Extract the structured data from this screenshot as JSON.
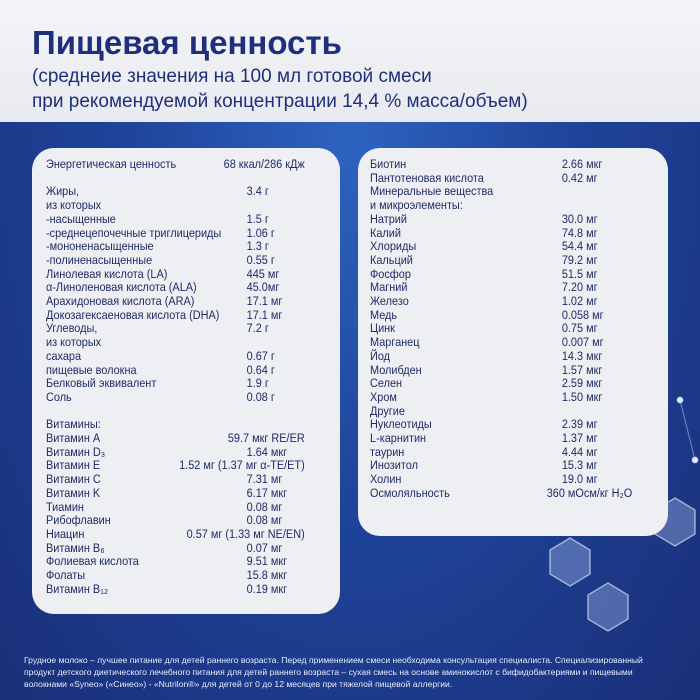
{
  "header": {
    "title": "Пищевая ценность",
    "subtitle_line1": "(среднеие значения на 100 мл готовой смеси",
    "subtitle_line2": "при рекомендуемой концентрации 14,4 % масса/объем)"
  },
  "left": [
    {
      "k": "Энергетическая ценность",
      "v": "68 ккал/286 кДж"
    },
    {
      "gap": true
    },
    {
      "k": "Жиры,",
      "v": "3.4 г"
    },
    {
      "k": "из которых",
      "v": ""
    },
    {
      "k": "-насыщенные",
      "v": "1.5 г"
    },
    {
      "k": "-среднецепочечные триглицериды",
      "v": "1.06 г"
    },
    {
      "k": "-мононенасыщенные",
      "v": "1.3 г"
    },
    {
      "k": "-полиненасыщенные",
      "v": "0.55 г"
    },
    {
      "k": "Линолевая кислота (LA)",
      "v": "445 мг"
    },
    {
      "k": "α-Линоленовая кислота (ALA)",
      "v": "45.0мг"
    },
    {
      "k": "Арахидоновая кислота (ARA)",
      "v": "17.1 мг"
    },
    {
      "k": "Докозагексаеновая кислота (DHA)",
      "v": "17.1 мг"
    },
    {
      "k": "Углеводы,",
      "v": "7.2 г"
    },
    {
      "k": "из которых",
      "v": ""
    },
    {
      "k": "сахара",
      "v": "0.67 г"
    },
    {
      "k": "пищевые волокна",
      "v": "0.64 г"
    },
    {
      "k": "Белковый эквивалент",
      "v": "1.9 г"
    },
    {
      "k": "Соль",
      "v": "0.08 г"
    },
    {
      "gap": true
    },
    {
      "k": "Витамины:",
      "v": ""
    },
    {
      "k": "Витамин A",
      "v": "59.7 мкг RE/ER"
    },
    {
      "k": "Витамин D₃",
      "v": "1.64 мкг"
    },
    {
      "k": "Витамин E",
      "v": "1.52 мг (1.37 мг α-TE/ET)"
    },
    {
      "k": "Витамин C",
      "v": "7.31 мг"
    },
    {
      "k": "Витамин K",
      "v": "6.17 мкг"
    },
    {
      "k": "Тиамин",
      "v": "0.08 мг"
    },
    {
      "k": "Рибофлавин",
      "v": "0.08 мг"
    },
    {
      "k": "Ниацин",
      "v": "0.57 мг (1.33 мг NE/EN)"
    },
    {
      "k": "Витамин B₆",
      "v": "0.07 мг"
    },
    {
      "k": "Фолиевая кислота",
      "v": "9.51 мкг"
    },
    {
      "k": "Фолаты",
      "v": "15.8 мкг"
    },
    {
      "k": "Витамин B₁₂",
      "v": "0.19 мкг"
    }
  ],
  "right": [
    {
      "k": "Биотин",
      "v": "2.66 мкг"
    },
    {
      "k": "Пантотеновая кислота",
      "v": "0.42 мг"
    },
    {
      "k": "Минеральные вещества",
      "v": ""
    },
    {
      "k": "и микроэлементы:",
      "v": ""
    },
    {
      "k": "Натрий",
      "v": "30.0 мг"
    },
    {
      "k": "Калий",
      "v": "74.8 мг"
    },
    {
      "k": "Хлориды",
      "v": "54.4 мг"
    },
    {
      "k": "Кальций",
      "v": "79.2 мг"
    },
    {
      "k": "Фосфор",
      "v": "51.5 мг"
    },
    {
      "k": "Магний",
      "v": "7.20 мг"
    },
    {
      "k": "Железо",
      "v": "1.02 мг"
    },
    {
      "k": "Медь",
      "v": "0.058 мг"
    },
    {
      "k": "Цинк",
      "v": "0.75 мг"
    },
    {
      "k": "Марганец",
      "v": "0.007 мг"
    },
    {
      "k": "Йод",
      "v": "14.3 мкг"
    },
    {
      "k": "Молибден",
      "v": "1.57 мкг"
    },
    {
      "k": "Селен",
      "v": "2.59 мкг"
    },
    {
      "k": "Хром",
      "v": "1.50 мкг"
    },
    {
      "k": "Другие",
      "v": ""
    },
    {
      "k": "Нуклеотиды",
      "v": "2.39 мг"
    },
    {
      "k": "L-карнитин",
      "v": "1.37 мг"
    },
    {
      "k": "таурин",
      "v": "4.44 мг"
    },
    {
      "k": "Инозитол",
      "v": "15.3 мг"
    },
    {
      "k": "Холин",
      "v": "19.0 мг"
    },
    {
      "k": "Осмоляльность",
      "v": "360 мОсм/кг H₂O"
    }
  ],
  "footer": "Грудное молоко – лучшее питание для детей раннего возраста. Перед применением смеси необходима консультация специалиста. Специализированный продукт детского диетического лечебного питания для детей раннего возраста – сухая смесь на основе аминокислот с бифидобактериями и пищевыми волокнами «Syneo» («Синео») - «Nutrilon®» для детей от 0 до 12 месяцев при тяжелой пищевой аллергии."
}
